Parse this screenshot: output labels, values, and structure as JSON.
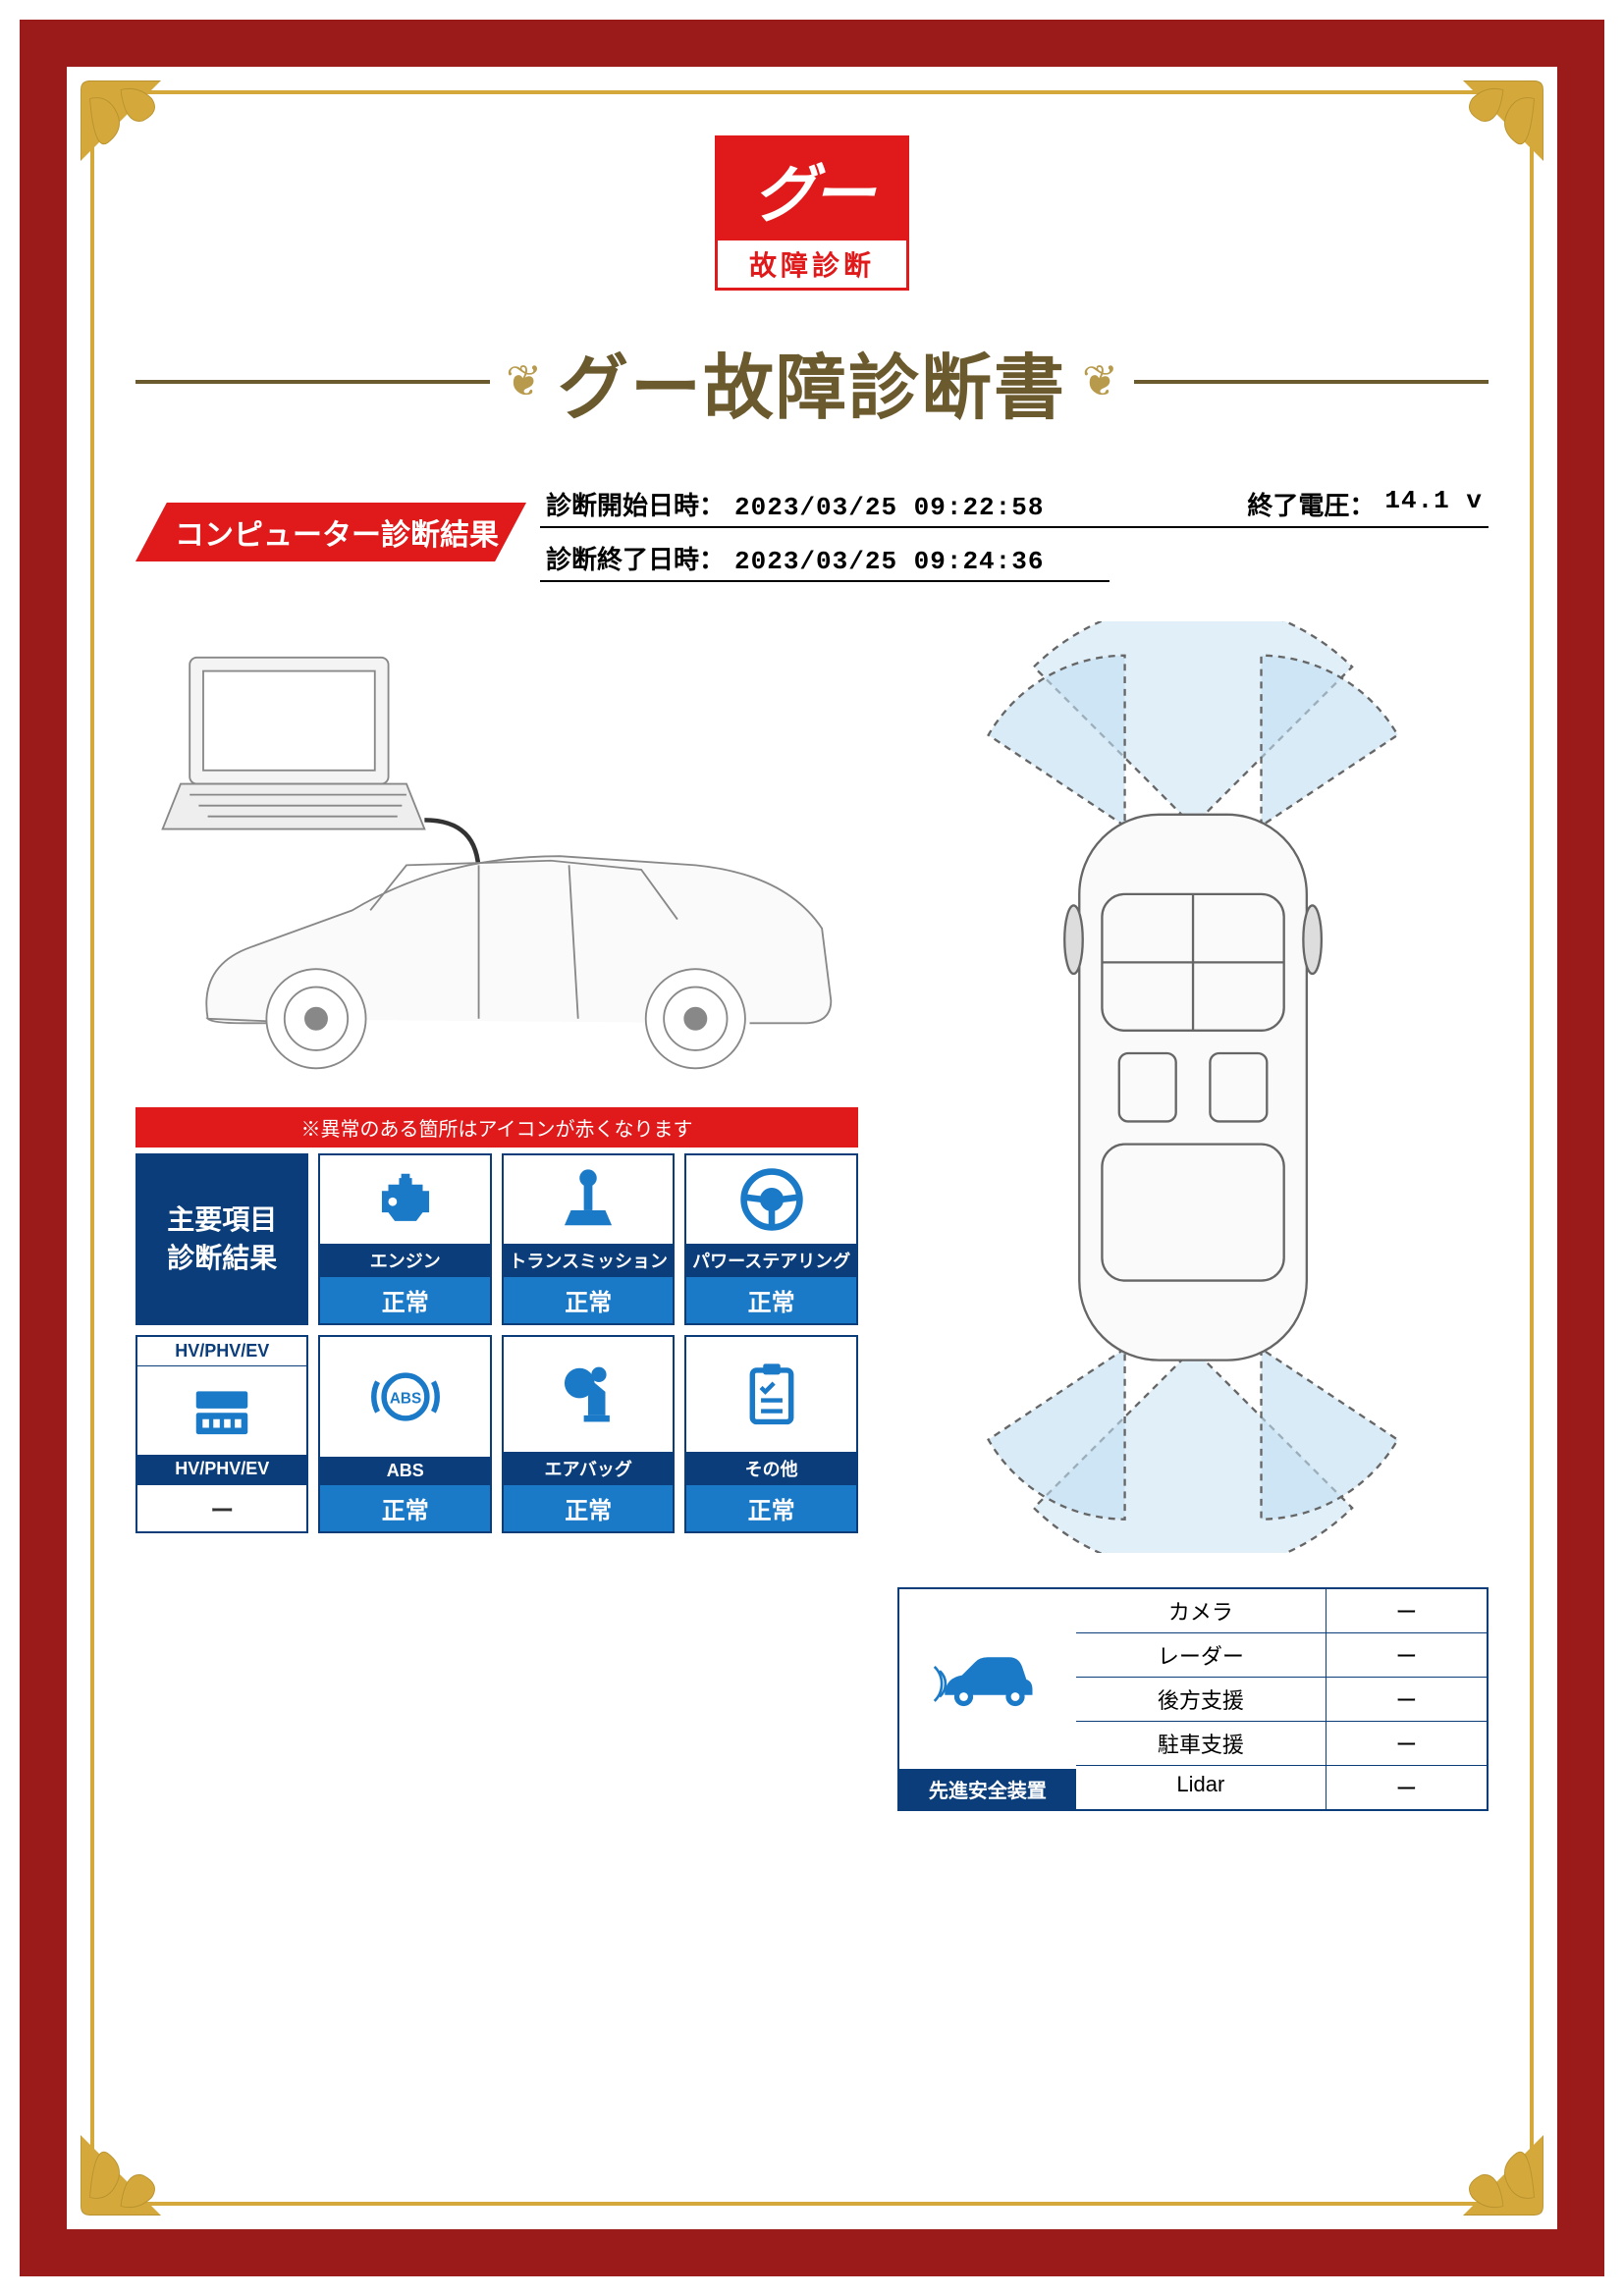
{
  "colors": {
    "frame": "#9b1b1b",
    "gold": "#d4a83a",
    "brand_red": "#e0191a",
    "navy": "#0a3d7a",
    "blue": "#1a7ac8",
    "title_brown": "#6b5a2e"
  },
  "logo": {
    "top": "グー",
    "bottom": "故障診断"
  },
  "title": "グー故障診断書",
  "section_badge": "コンピューター診断結果",
  "meta": {
    "start_label": "診断開始日時：",
    "start_value": "2023/03/25 09:22:58",
    "voltage_label": "終了電圧：",
    "voltage_value": "14.1 v",
    "end_label": "診断終了日時：",
    "end_value": "2023/03/25 09:24:36"
  },
  "warning_text": "※異常のある箇所はアイコンが赤くなります",
  "header_cell": "主要項目\n診断結果",
  "items": {
    "engine": {
      "label": "エンジン",
      "status": "正常"
    },
    "transmission": {
      "label": "トランスミッション",
      "status": "正常"
    },
    "steering": {
      "label": "パワーステアリング",
      "status": "正常"
    },
    "hv": {
      "top": "HV/PHV/EV",
      "label": "HV/PHV/EV",
      "status": "ー"
    },
    "abs": {
      "label": "ABS",
      "status": "正常"
    },
    "airbag": {
      "label": "エアバッグ",
      "status": "正常"
    },
    "other": {
      "label": "その他",
      "status": "正常"
    }
  },
  "safety": {
    "caption": "先進安全装置",
    "rows": [
      {
        "name": "カメラ",
        "value": "ー"
      },
      {
        "name": "レーダー",
        "value": "ー"
      },
      {
        "name": "後方支援",
        "value": "ー"
      },
      {
        "name": "駐車支援",
        "value": "ー"
      },
      {
        "name": "Lidar",
        "value": "ー"
      }
    ]
  }
}
